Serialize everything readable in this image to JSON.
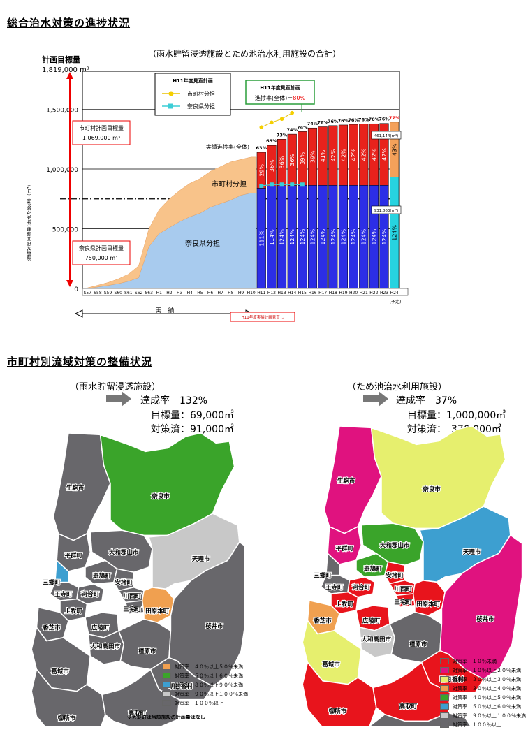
{
  "section1": {
    "title": "総合治水対策の進捗状況"
  },
  "chart_data": {
    "type": "bar",
    "title": "（雨水貯留浸透施設とため池治水利用施設の合計）",
    "ylabel": "流域対策目標量(雨水ため池)（m³）",
    "ylim": [
      0,
      1819000
    ],
    "yticks": [
      "0",
      "500,000",
      "1,000,000",
      "1,500,000"
    ],
    "y_top_label": "計画目標量",
    "y_top_value": "1,819,000 m³",
    "categories": [
      "S57",
      "S58",
      "S59",
      "S60",
      "S61",
      "S62",
      "S63",
      "H1",
      "H2",
      "H3",
      "H4",
      "H5",
      "H6",
      "H7",
      "H8",
      "H9",
      "H10",
      "H11",
      "H12",
      "H13",
      "H14",
      "H15",
      "H16",
      "H17",
      "H18",
      "H19",
      "H20",
      "H21",
      "H22",
      "H23",
      "H24"
    ],
    "series": [
      {
        "name": "奈良県分担",
        "values": [
          0,
          12000,
          25000,
          40000,
          60000,
          90000,
          350000,
          460000,
          510000,
          560000,
          600000,
          630000,
          680000,
          710000,
          740000,
          780000,
          800000,
          840000,
          858000,
          860000,
          862000,
          864000,
          864000,
          864000,
          864000,
          864000,
          864000,
          864000,
          864000,
          864000,
          931863
        ]
      },
      {
        "name": "市町村分担",
        "values": [
          5000,
          15000,
          25000,
          40000,
          60000,
          100000,
          150000,
          200000,
          240000,
          260000,
          280000,
          290000,
          300000,
          310000,
          320000,
          300000,
          300000,
          300000,
          340000,
          390000,
          430000,
          450000,
          480000,
          490000,
          500000,
          505000,
          510000,
          512000,
          515000,
          518000,
          461144
        ]
      }
    ],
    "bar_labels": {
      "rate": [
        "63%",
        "65%",
        "73%",
        "74%",
        "74%",
        "74%",
        "76%",
        "76%",
        "76%",
        "76%",
        "76%",
        "76%",
        "76%",
        "77%",
        "(77%)"
      ],
      "city": [
        "29%",
        "36%",
        "36%",
        "36%",
        "39%",
        "39%",
        "41%",
        "42%",
        "42%",
        "42%",
        "42%",
        "42%",
        "42%",
        "43%",
        "(43%)"
      ],
      "pref": [
        "111%",
        "114%",
        "124%",
        "124%",
        "124%",
        "124%",
        "124%",
        "124%",
        "124%",
        "124%",
        "124%",
        "124%",
        "124%",
        "124%",
        "(124%)"
      ]
    },
    "legend": {
      "title": "H11年度見直計画",
      "items": [
        "市町村分担",
        "奈良県分担"
      ]
    },
    "legend_data": [
      {
        "name": "市町村分担",
        "values": [
          1350000,
          1390000,
          1420000,
          1470000
        ]
      },
      {
        "name": "奈良県分担",
        "values": [
          860000,
          870000,
          870000,
          870000,
          870000
        ]
      }
    ],
    "callout": {
      "title": "H11年度見直計画",
      "text_pre": "進捗率(全体)＝",
      "text_val": "80%"
    },
    "annotations": {
      "actual_label": "実績進捗率(全体)",
      "city_area": "市町村分担",
      "pref_area": "奈良県分担",
      "city_target_label": "市町村計画目標量",
      "city_target_value": "1,069,000 m³",
      "pref_target_label": "奈良県計画目標量",
      "pref_target_value": "750,000 m³",
      "v461": "461,144(m³)",
      "v931": "931,863(m³)",
      "actual": "実　績",
      "yotei": "(予定)",
      "h11_note": "H11年度実績計画見直し"
    },
    "dash_line": 750000,
    "grid": true
  },
  "section2": {
    "title": "市町村別流域対策の整備状況",
    "left": {
      "subtitle": "（雨水貯留浸透施設）",
      "rate_label": "達成率",
      "rate": "132%",
      "target": "目標量：69,000㎥",
      "done": "対策済：91,000㎥"
    },
    "right": {
      "subtitle": "（ため池治水利用施設）",
      "rate_label": "達成率",
      "rate": "37%",
      "target": "目標量：1,000,000㎥",
      "done": "対策済：　370,000㎥"
    }
  },
  "map_left": {
    "names": [
      "生駒市",
      "奈良市",
      "平群町",
      "大和郡山市",
      "三郷町",
      "斑鳩町",
      "安堵町",
      "王寺町",
      "河合町",
      "川西町",
      "三宅町",
      "上牧町",
      "香芝市",
      "広陵町",
      "田原本町",
      "天理市",
      "大和高田市",
      "葛城市",
      "橿原市",
      "桜井市",
      "明日香村",
      "御所市",
      "高取町",
      "大淀町"
    ],
    "colors": [
      "#68676b",
      "#3aa42a",
      "#68676b",
      "#68676b",
      "#3d9fd0",
      "#68676b",
      "#68676b",
      "#68676b",
      "#68676b",
      "#68676b",
      "#68676b",
      "#68676b",
      "#68676b",
      "#68676b",
      "#f0a050",
      "#c8c8c8",
      "#68676b",
      "#68676b",
      "#68676b",
      "#68676b",
      "#68676b",
      "#68676b",
      "#68676b",
      "#ffffff"
    ],
    "legend": [
      {
        "label": "対策率　４０％以上５０％未満",
        "color": "#f0a050"
      },
      {
        "label": "対策率　５０％以上６０％未満",
        "color": "#3aa42a"
      },
      {
        "label": "対策率　８０％以上９０％未満",
        "color": "#3d9fd0"
      },
      {
        "label": "対策率　９０％以上１００％未満",
        "color": "#c8c8c8"
      },
      {
        "label": "対策率　１００％以上",
        "color": "#68676b"
      }
    ],
    "note": "※大淀町は当該施設の計画量はなし"
  },
  "map_right": {
    "names": [
      "生駒市",
      "奈良市",
      "平群町",
      "大和郡山市",
      "三郷町",
      "斑鳩町",
      "安堵町",
      "王寺町",
      "河合町",
      "川西町",
      "三宅町",
      "上牧町",
      "香芝市",
      "広陵町",
      "田原本町",
      "天理市",
      "大和高田市",
      "葛城市",
      "橿原市",
      "桜井市",
      "明日香村",
      "御所市",
      "高取町",
      "大淀町"
    ],
    "colors": [
      "#e0127f",
      "#e6ef6e",
      "#e0127f",
      "#3aa42a",
      "#68676b",
      "#3aa42a",
      "#e8141c",
      "#68676b",
      "#e8141c",
      "#e8141c",
      "#e8141c",
      "#e8141c",
      "#f0a050",
      "#e8141c",
      "#e8141c",
      "#3d9fd0",
      "#c8c8c8",
      "#e6ef6e",
      "#68676b",
      "#e0127f",
      "#e8141c",
      "#e8141c",
      "#e8141c",
      "#68676b"
    ],
    "legend": [
      {
        "label": "対策率　１０％未満",
        "color": "#e8141c"
      },
      {
        "label": "対策率　１０％以上２０％未満",
        "color": "#e0127f"
      },
      {
        "label": "対策率　２０％以上３０％未満",
        "color": "#e6ef6e"
      },
      {
        "label": "対策率　３０％以上４０％未満",
        "color": "#f0a050"
      },
      {
        "label": "対策率　４０％以上５０％未満",
        "color": "#3aa42a"
      },
      {
        "label": "対策率　５０％以上６０％未満",
        "color": "#3d9fd0"
      },
      {
        "label": "対策率　９０％以上１００％未満",
        "color": "#c8c8c8"
      },
      {
        "label": "対策率　１００％以上",
        "color": "#68676b"
      }
    ]
  }
}
